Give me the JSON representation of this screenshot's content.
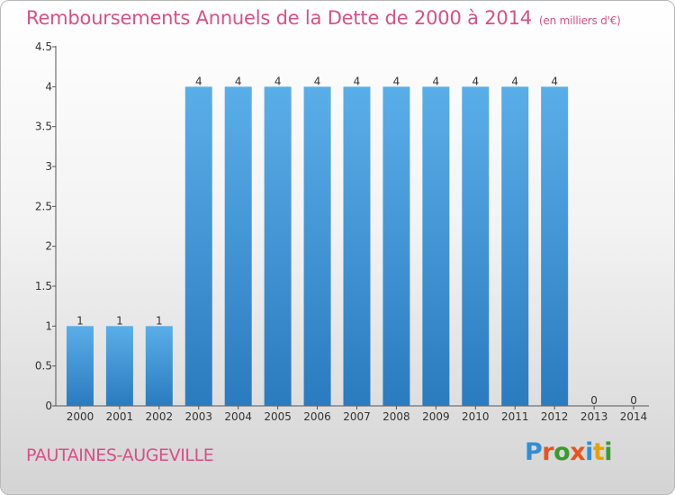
{
  "header": {
    "title": "Remboursements Annuels de la Dette de 2000 à 2014",
    "unit": "(en milliers d'€)"
  },
  "footer": {
    "place": "PAUTAINES-AUGEVILLE",
    "logo": "Proxiti"
  },
  "colors": {
    "title": "#d94f86",
    "bar_top": "#5aaee8",
    "bar_bottom": "#2a7bbf",
    "logo_letters": [
      "#2f8fd6",
      "#e8541c",
      "#3a9a2e",
      "#e8541c",
      "#2f8fd6",
      "#e5a300",
      "#3a9a2e"
    ]
  },
  "chart_data": {
    "type": "bar",
    "title": "Remboursements Annuels de la Dette de 2000 à 2014",
    "subtitle": "(en milliers d'€)",
    "xlabel": "",
    "ylabel": "",
    "categories": [
      "2000",
      "2001",
      "2002",
      "2003",
      "2004",
      "2005",
      "2006",
      "2007",
      "2008",
      "2009",
      "2010",
      "2011",
      "2012",
      "2013",
      "2014"
    ],
    "values": [
      1,
      1,
      1,
      4,
      4,
      4,
      4,
      4,
      4,
      4,
      4,
      4,
      4,
      0,
      0
    ],
    "data_labels": [
      "1",
      "1",
      "1",
      "4",
      "4",
      "4",
      "4",
      "4",
      "4",
      "4",
      "4",
      "4",
      "4",
      "0",
      "0"
    ],
    "ylim": [
      0,
      4.5
    ],
    "yticks": [
      0,
      0.5,
      1,
      1.5,
      2,
      2.5,
      3,
      3.5,
      4,
      4.5
    ],
    "ytick_labels": [
      "0",
      "0.5",
      "1",
      "1.5",
      "2",
      "2.5",
      "3",
      "3.5",
      "4",
      "4.5"
    ],
    "grid": false,
    "legend": "none"
  }
}
